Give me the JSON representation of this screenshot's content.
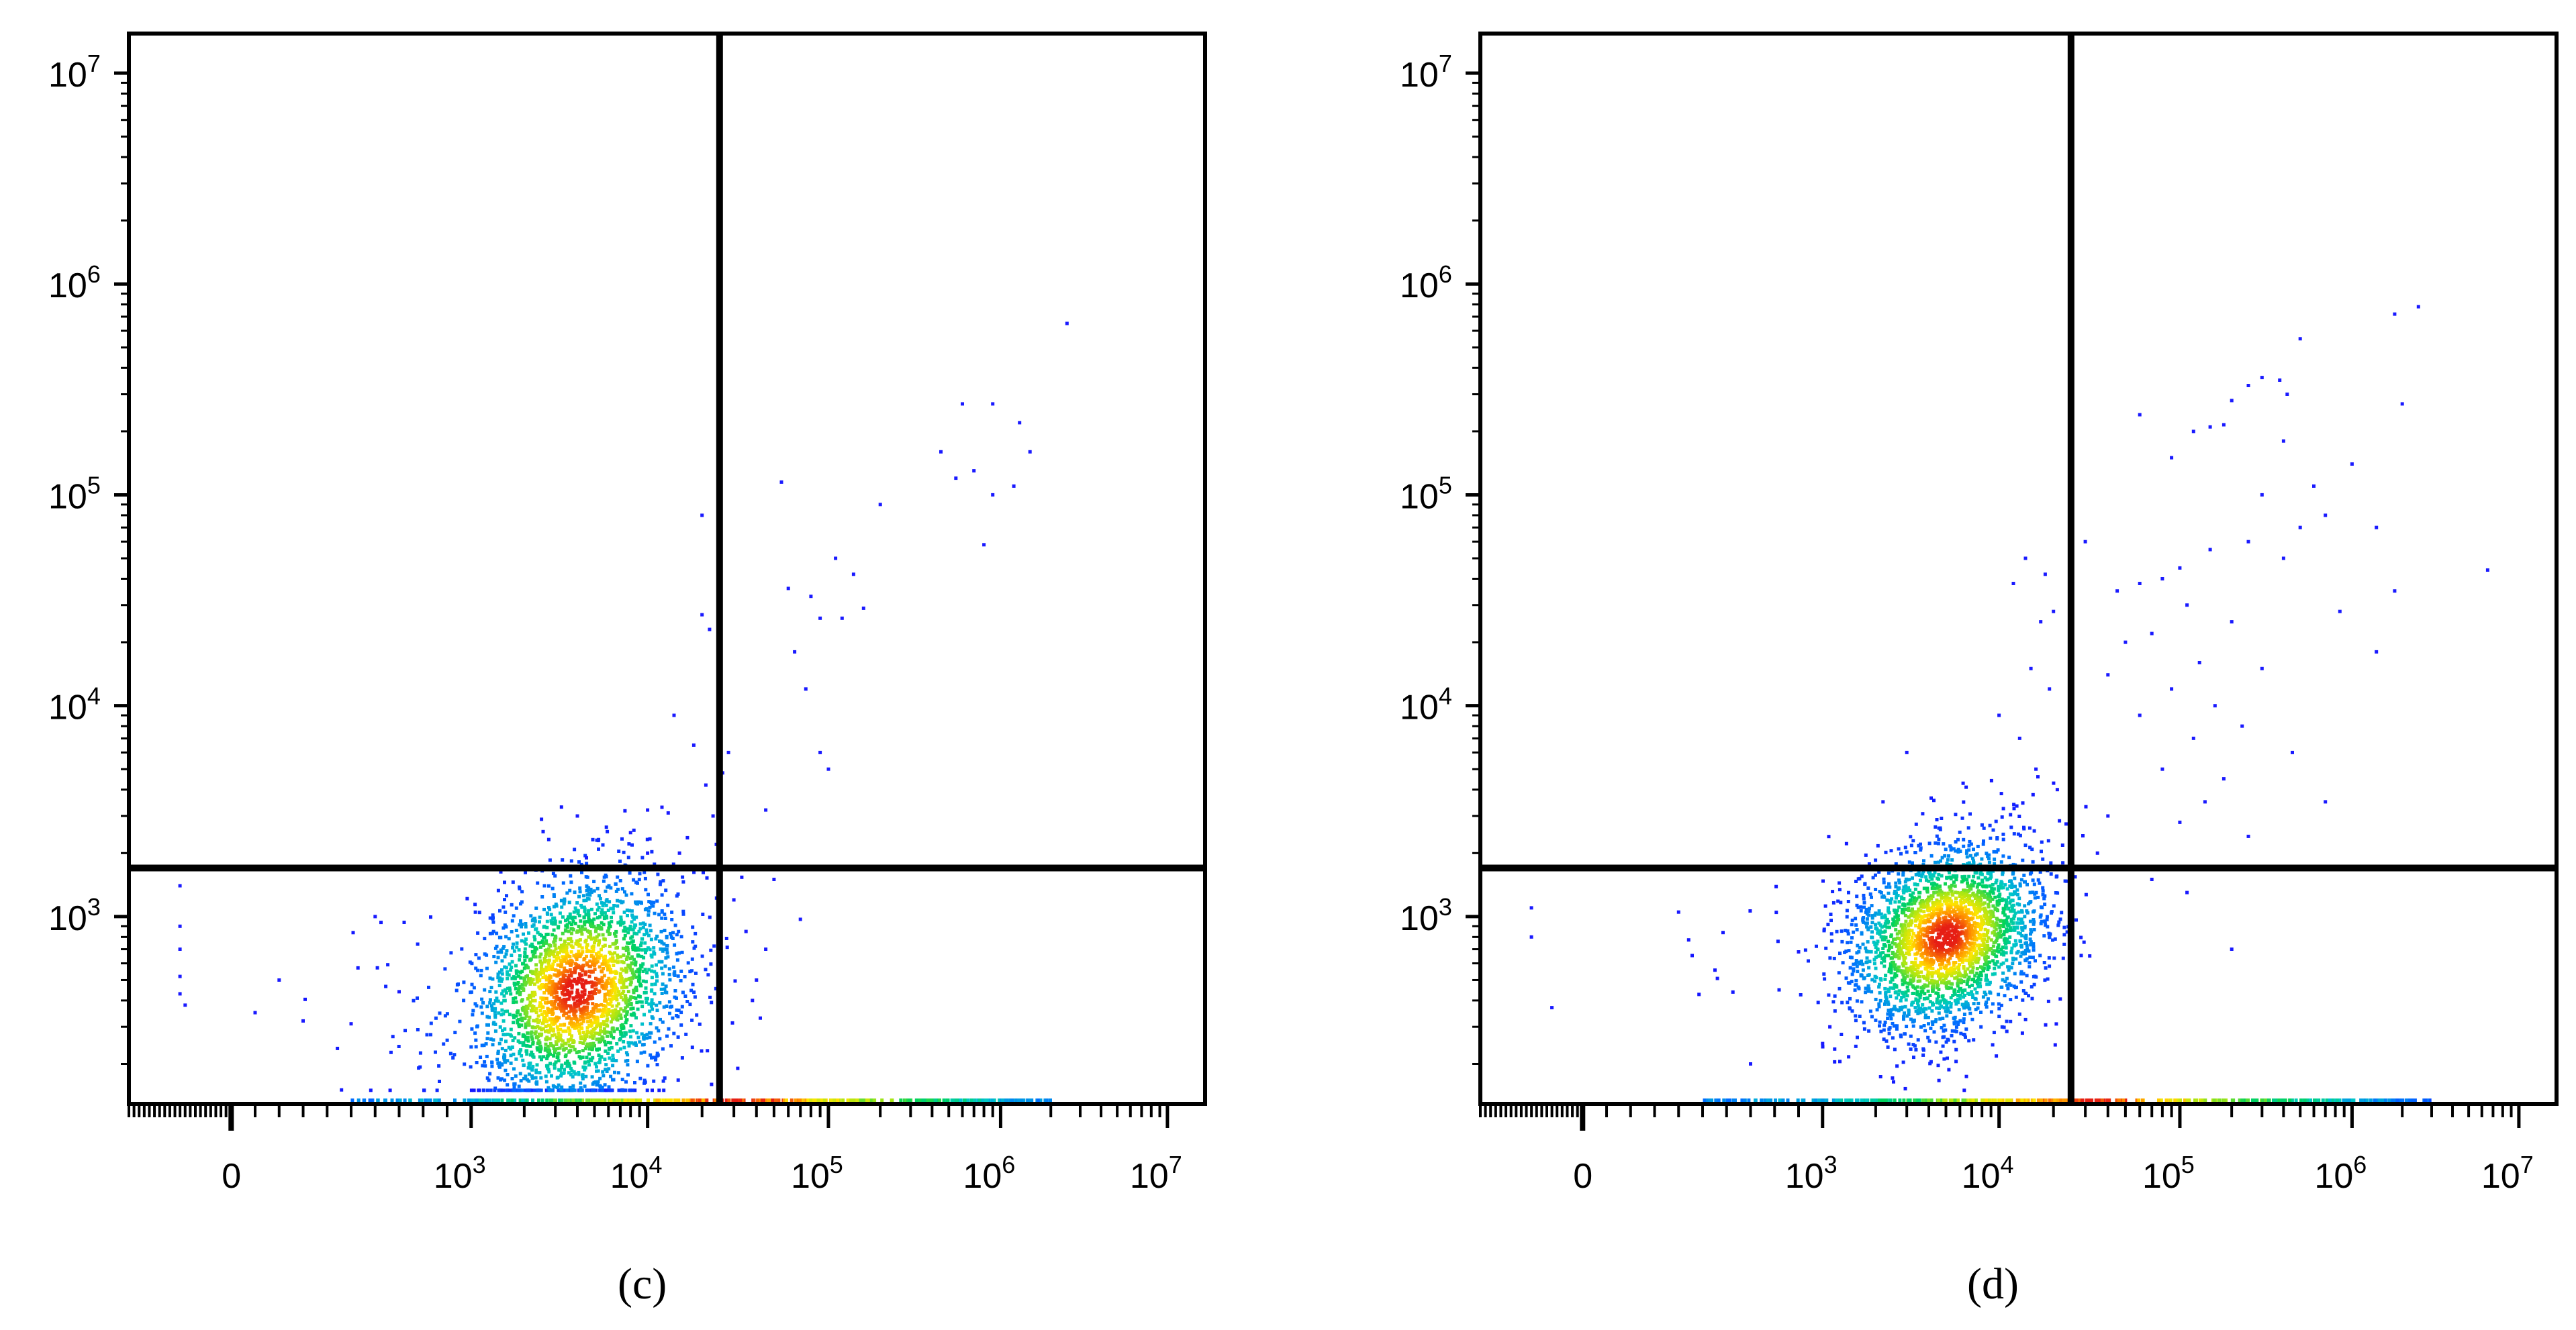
{
  "chart_data": [
    {
      "type": "scatter",
      "panel": "c",
      "panel_label": "(c)",
      "x_scale": "biexponential",
      "y_scale": "log",
      "xlim": [
        -2000,
        10000000
      ],
      "ylim": [
        150,
        10000000
      ],
      "x_ticks": [
        {
          "value": 0,
          "label": "0"
        },
        {
          "value": 1000,
          "base": "10",
          "exp": "3"
        },
        {
          "value": 10000,
          "base": "10",
          "exp": "4"
        },
        {
          "value": 100000,
          "base": "10",
          "exp": "5"
        },
        {
          "value": 1000000,
          "base": "10",
          "exp": "6"
        },
        {
          "value": 10000000,
          "base": "10",
          "exp": "7"
        }
      ],
      "y_ticks": [
        {
          "value": 1000,
          "base": "10",
          "exp": "3"
        },
        {
          "value": 10000,
          "base": "10",
          "exp": "4"
        },
        {
          "value": 100000,
          "base": "10",
          "exp": "5"
        },
        {
          "value": 1000000,
          "base": "10",
          "exp": "6"
        },
        {
          "value": 10000000,
          "base": "10",
          "exp": "7"
        }
      ],
      "quadrant_gate": {
        "x": 25000,
        "y": 1700
      },
      "main_population": {
        "center_x": 4000,
        "center_y": 450,
        "spread_log_x": 0.3,
        "spread_log_y": 0.27,
        "count": 2600
      },
      "on_axis_events_x_range": [
        500,
        2000000
      ],
      "sparse_points": [
        {
          "x": 2500000,
          "y": 650000
        },
        {
          "x": 600000,
          "y": 270000
        },
        {
          "x": 900000,
          "y": 270000
        },
        {
          "x": 1300000,
          "y": 220000
        },
        {
          "x": 1500000,
          "y": 160000
        },
        {
          "x": 450000,
          "y": 160000
        },
        {
          "x": 700000,
          "y": 130000
        },
        {
          "x": 550000,
          "y": 120000
        },
        {
          "x": 900000,
          "y": 100000
        },
        {
          "x": 1200000,
          "y": 110000
        },
        {
          "x": 800000,
          "y": 58000
        },
        {
          "x": 55000,
          "y": 115000
        },
        {
          "x": 200000,
          "y": 90000
        },
        {
          "x": 20000,
          "y": 80000
        },
        {
          "x": 110000,
          "y": 50000
        },
        {
          "x": 140000,
          "y": 42000
        },
        {
          "x": 60000,
          "y": 36000
        },
        {
          "x": 80000,
          "y": 33000
        },
        {
          "x": 160000,
          "y": 29000
        },
        {
          "x": 90000,
          "y": 26000
        },
        {
          "x": 120000,
          "y": 26000
        },
        {
          "x": 65000,
          "y": 18000
        },
        {
          "x": 75000,
          "y": 12000
        },
        {
          "x": 90000,
          "y": 6000
        },
        {
          "x": 100000,
          "y": 5000
        },
        {
          "x": 45000,
          "y": 3200
        },
        {
          "x": 20000,
          "y": 27000
        },
        {
          "x": 22000,
          "y": 23000
        },
        {
          "x": 14000,
          "y": 9000
        },
        {
          "x": 18000,
          "y": 6500
        },
        {
          "x": 28000,
          "y": 6000
        },
        {
          "x": 26000,
          "y": 4800
        },
        {
          "x": 21000,
          "y": 4200
        },
        {
          "x": 23000,
          "y": 3000
        },
        {
          "x": 12000,
          "y": 3300
        },
        {
          "x": 10000,
          "y": 3200
        },
        {
          "x": 13000,
          "y": 3100
        },
        {
          "x": 4000,
          "y": 3000
        },
        {
          "x": 4500,
          "y": 1900
        },
        {
          "x": 8000,
          "y": 2500
        },
        {
          "x": 10000,
          "y": 2000
        },
        {
          "x": 15000,
          "y": 2000
        },
        {
          "x": 24000,
          "y": 2200
        },
        {
          "x": 50000,
          "y": 1500
        },
        {
          "x": 30000,
          "y": 1200
        },
        {
          "x": 35000,
          "y": 850
        },
        {
          "x": 45000,
          "y": 700
        },
        {
          "x": 40000,
          "y": 500
        },
        {
          "x": 38000,
          "y": 400
        },
        {
          "x": 42000,
          "y": 330
        },
        {
          "x": 70000,
          "y": 970
        },
        {
          "x": -1000,
          "y": 1400
        },
        {
          "x": -1000,
          "y": 900
        },
        {
          "x": -1000,
          "y": 700
        },
        {
          "x": -1000,
          "y": 520
        },
        {
          "x": -1000,
          "y": 430
        },
        {
          "x": -900,
          "y": 380
        },
        {
          "x": 100,
          "y": 350
        },
        {
          "x": 300,
          "y": 320
        },
        {
          "x": 500,
          "y": 310
        },
        {
          "x": 700,
          "y": 440
        },
        {
          "x": 600,
          "y": 1000
        },
        {
          "x": 200,
          "y": 500
        }
      ]
    },
    {
      "type": "scatter",
      "panel": "d",
      "panel_label": "(d)",
      "x_scale": "biexponential",
      "y_scale": "log",
      "xlim": [
        -2000,
        10000000
      ],
      "ylim": [
        150,
        10000000
      ],
      "x_ticks": [
        {
          "value": 0,
          "label": "0"
        },
        {
          "value": 1000,
          "base": "10",
          "exp": "3"
        },
        {
          "value": 10000,
          "base": "10",
          "exp": "4"
        },
        {
          "value": 100000,
          "base": "10",
          "exp": "5"
        },
        {
          "value": 1000000,
          "base": "10",
          "exp": "6"
        },
        {
          "value": 10000000,
          "base": "10",
          "exp": "7"
        }
      ],
      "y_ticks": [
        {
          "value": 1000,
          "base": "10",
          "exp": "3"
        },
        {
          "value": 10000,
          "base": "10",
          "exp": "4"
        },
        {
          "value": 100000,
          "base": "10",
          "exp": "5"
        },
        {
          "value": 1000000,
          "base": "10",
          "exp": "6"
        },
        {
          "value": 10000000,
          "base": "10",
          "exp": "7"
        }
      ],
      "quadrant_gate": {
        "x": 25000,
        "y": 1700
      },
      "main_population": {
        "center_x": 5000,
        "center_y": 800,
        "spread_log_x": 0.28,
        "spread_log_y": 0.22,
        "count": 2700
      },
      "on_axis_events_x_range": [
        500,
        3000000
      ],
      "sparse_points": [
        {
          "x": 1800000,
          "y": 720000
        },
        {
          "x": 2500000,
          "y": 780000
        },
        {
          "x": 500000,
          "y": 550000
        },
        {
          "x": 300000,
          "y": 360000
        },
        {
          "x": 250000,
          "y": 330000
        },
        {
          "x": 380000,
          "y": 350000
        },
        {
          "x": 420000,
          "y": 300000
        },
        {
          "x": 200000,
          "y": 280000
        },
        {
          "x": 2000000,
          "y": 270000
        },
        {
          "x": 60000,
          "y": 240000
        },
        {
          "x": 150000,
          "y": 210000
        },
        {
          "x": 120000,
          "y": 200000
        },
        {
          "x": 180000,
          "y": 215000
        },
        {
          "x": 400000,
          "y": 180000
        },
        {
          "x": 90000,
          "y": 150000
        },
        {
          "x": 1000000,
          "y": 140000
        },
        {
          "x": 600000,
          "y": 110000
        },
        {
          "x": 300000,
          "y": 100000
        },
        {
          "x": 700000,
          "y": 80000
        },
        {
          "x": 500000,
          "y": 70000
        },
        {
          "x": 1400000,
          "y": 70000
        },
        {
          "x": 6500000,
          "y": 44000
        },
        {
          "x": 1800000,
          "y": 35000
        },
        {
          "x": 250000,
          "y": 60000
        },
        {
          "x": 150000,
          "y": 55000
        },
        {
          "x": 400000,
          "y": 50000
        },
        {
          "x": 100000,
          "y": 45000
        },
        {
          "x": 80000,
          "y": 40000
        },
        {
          "x": 60000,
          "y": 38000
        },
        {
          "x": 45000,
          "y": 35000
        },
        {
          "x": 30000,
          "y": 60000
        },
        {
          "x": 110000,
          "y": 30000
        },
        {
          "x": 850000,
          "y": 28000
        },
        {
          "x": 200000,
          "y": 25000
        },
        {
          "x": 70000,
          "y": 22000
        },
        {
          "x": 50000,
          "y": 20000
        },
        {
          "x": 130000,
          "y": 16000
        },
        {
          "x": 1400000,
          "y": 18000
        },
        {
          "x": 300000,
          "y": 15000
        },
        {
          "x": 40000,
          "y": 14000
        },
        {
          "x": 90000,
          "y": 12000
        },
        {
          "x": 160000,
          "y": 10000
        },
        {
          "x": 60000,
          "y": 9000
        },
        {
          "x": 230000,
          "y": 8000
        },
        {
          "x": 120000,
          "y": 7000
        },
        {
          "x": 450000,
          "y": 6000
        },
        {
          "x": 80000,
          "y": 5000
        },
        {
          "x": 180000,
          "y": 4500
        },
        {
          "x": 140000,
          "y": 3500
        },
        {
          "x": 700000,
          "y": 3500
        },
        {
          "x": 40000,
          "y": 3000
        },
        {
          "x": 100000,
          "y": 2800
        },
        {
          "x": 250000,
          "y": 2400
        },
        {
          "x": 35000,
          "y": 2000
        },
        {
          "x": 70000,
          "y": 1500
        },
        {
          "x": 110000,
          "y": 1300
        },
        {
          "x": 200000,
          "y": 700
        },
        {
          "x": 14000,
          "y": 50000
        },
        {
          "x": 18000,
          "y": 42000
        },
        {
          "x": 12000,
          "y": 38000
        },
        {
          "x": 20000,
          "y": 28000
        },
        {
          "x": 17000,
          "y": 25000
        },
        {
          "x": 15000,
          "y": 15000
        },
        {
          "x": 19000,
          "y": 12000
        },
        {
          "x": 10000,
          "y": 9000
        },
        {
          "x": 13000,
          "y": 7000
        },
        {
          "x": 16000,
          "y": 5000
        },
        {
          "x": 21000,
          "y": 4000
        },
        {
          "x": 3000,
          "y": 6000
        },
        {
          "x": 2200,
          "y": 3500
        },
        {
          "x": -1000,
          "y": 1100
        },
        {
          "x": -1000,
          "y": 800
        },
        {
          "x": -600,
          "y": 370
        },
        {
          "x": 400,
          "y": 1050
        },
        {
          "x": 900,
          "y": 680
        },
        {
          "x": 1100,
          "y": 300
        },
        {
          "x": 1000,
          "y": 250
        },
        {
          "x": 700,
          "y": 200
        }
      ]
    }
  ]
}
